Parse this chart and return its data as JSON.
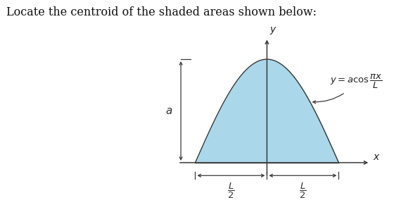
{
  "title": "Locate the centroid of the shaded areas shown below:",
  "title_fontsize": 11.5,
  "background_color": "#ffffff",
  "shade_color": "#aad8ea",
  "shade_edge_color": "#3a3a3a",
  "axis_color": "#3a3a3a",
  "dim_color": "#3a3a3a",
  "figure_width": 5.7,
  "figure_height": 3.11,
  "dpi": 100,
  "L": 1.0,
  "a": 0.72
}
